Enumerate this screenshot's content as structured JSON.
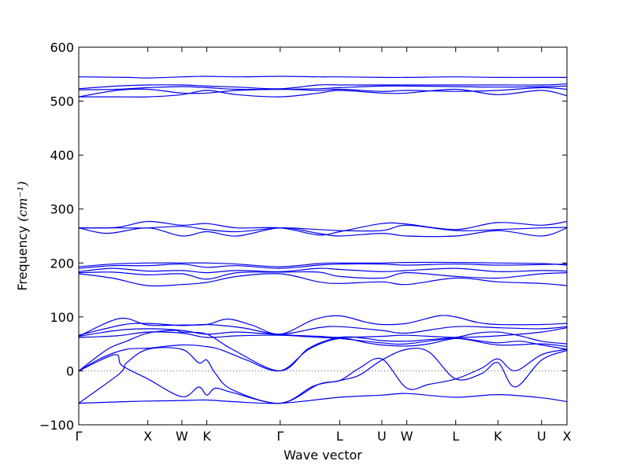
{
  "chart_data": {
    "type": "line",
    "title": "",
    "xlabel": "Wave vector",
    "ylabel": "Frequency ",
    "ylabel_unit": "(cm⁻¹)",
    "ylim": [
      -100,
      600
    ],
    "yticks": [
      -100,
      0,
      100,
      200,
      300,
      400,
      500,
      600
    ],
    "xlim": [
      0,
      10.18
    ],
    "xticks": [
      {
        "label": "Γ",
        "x": 0.0
      },
      {
        "label": "X",
        "x": 1.44
      },
      {
        "label": "W",
        "x": 2.15
      },
      {
        "label": "K",
        "x": 2.67
      },
      {
        "label": "Γ",
        "x": 4.2
      },
      {
        "label": "L",
        "x": 5.44
      },
      {
        "label": "U",
        "x": 6.32
      },
      {
        "label": "W",
        "x": 6.84
      },
      {
        "label": "L",
        "x": 7.86
      },
      {
        "label": "K",
        "x": 8.74
      },
      {
        "label": "U",
        "x": 9.65
      },
      {
        "label": "X",
        "x": 10.18
      }
    ],
    "reference_line": {
      "y": 0,
      "style": "dotted"
    },
    "band_color": "#0000ee",
    "grid": false,
    "legend": "none",
    "series": [
      {
        "x": [
          0,
          1.0,
          1.44,
          2.15,
          2.67,
          3.2,
          4.2,
          5.44,
          6.32,
          6.84,
          7.86,
          8.74,
          9.65,
          10.18
        ],
        "values": [
          -60,
          -57,
          -56,
          -55,
          -54,
          -57,
          -60,
          -49,
          -45,
          -42,
          -49,
          -44,
          -50,
          -57
        ]
      },
      {
        "x": [
          0,
          0.85,
          1.0,
          1.44,
          2.15,
          2.5,
          2.67,
          2.85,
          3.2,
          4.2,
          5.0,
          5.44,
          5.85,
          6.32,
          6.84,
          7.3,
          7.86,
          8.4,
          8.74,
          9.1,
          9.65,
          10.18
        ],
        "values": [
          -60,
          -5,
          15,
          40,
          40,
          15,
          20,
          -5,
          -35,
          -60,
          -25,
          -18,
          5,
          22,
          -32,
          -25,
          -15,
          5,
          22,
          0,
          30,
          40
        ]
      },
      {
        "x": [
          0,
          0.75,
          0.9,
          1.44,
          2.15,
          2.5,
          2.67,
          2.85,
          3.2,
          4.2,
          4.9,
          5.44,
          5.85,
          6.32,
          6.84,
          7.3,
          7.86,
          8.4,
          8.74,
          9.1,
          9.65,
          10.18
        ],
        "values": [
          0,
          30,
          10,
          -15,
          -48,
          -30,
          -45,
          -32,
          -40,
          -60,
          -28,
          -18,
          -8,
          20,
          40,
          35,
          -15,
          -5,
          15,
          -30,
          20,
          38
        ]
      },
      {
        "x": [
          0,
          0.5,
          1.0,
          1.44,
          2.15,
          2.67,
          3.0,
          3.5,
          4.2,
          4.8,
          5.44,
          6.0,
          6.32,
          6.84,
          7.3,
          7.86,
          8.4,
          8.74,
          9.2,
          9.65,
          10.18
        ],
        "values": [
          0,
          25,
          40,
          42,
          48,
          45,
          38,
          20,
          0,
          40,
          60,
          52,
          48,
          46,
          50,
          60,
          55,
          52,
          55,
          48,
          40
        ]
      },
      {
        "x": [
          0,
          0.6,
          1.0,
          1.44,
          2.0,
          2.15,
          2.67,
          3.2,
          4.2,
          4.8,
          5.44,
          6.0,
          6.32,
          6.84,
          7.3,
          7.86,
          8.3,
          8.74,
          9.2,
          9.65,
          10.18
        ],
        "values": [
          0,
          40,
          55,
          70,
          75,
          72,
          68,
          40,
          0,
          42,
          62,
          60,
          56,
          55,
          58,
          62,
          70,
          72,
          65,
          55,
          50
        ]
      },
      {
        "x": [
          0,
          0.8,
          1.44,
          2.15,
          2.67,
          3.3,
          4.2,
          5.0,
          5.44,
          6.32,
          6.84,
          7.86,
          8.74,
          9.65,
          10.18
        ],
        "values": [
          62,
          65,
          72,
          70,
          62,
          65,
          66,
          62,
          60,
          52,
          50,
          60,
          48,
          50,
          45
        ]
      },
      {
        "x": [
          0,
          0.8,
          1.44,
          2.15,
          2.67,
          3.3,
          4.2,
          5.0,
          5.44,
          6.32,
          6.84,
          7.86,
          8.74,
          9.65,
          10.18
        ],
        "values": [
          64,
          75,
          78,
          75,
          68,
          72,
          67,
          64,
          62,
          64,
          66,
          62,
          65,
          72,
          80
        ]
      },
      {
        "x": [
          0,
          0.9,
          1.44,
          2.15,
          2.67,
          3.4,
          4.2,
          5.0,
          5.44,
          6.32,
          6.84,
          7.86,
          8.74,
          9.65,
          10.18
        ],
        "values": [
          66,
          85,
          88,
          84,
          86,
          80,
          68,
          80,
          82,
          75,
          70,
          82,
          80,
          78,
          82
        ]
      },
      {
        "x": [
          0,
          0.85,
          1.44,
          2.15,
          2.67,
          3.1,
          3.6,
          4.2,
          4.9,
          5.44,
          6.0,
          6.32,
          6.84,
          7.5,
          7.86,
          8.3,
          8.74,
          9.65,
          10.18
        ],
        "values": [
          64,
          97,
          85,
          85,
          86,
          96,
          85,
          68,
          95,
          102,
          90,
          86,
          88,
          102,
          100,
          90,
          86,
          86,
          88
        ]
      },
      {
        "x": [
          0,
          0.7,
          1.44,
          2.15,
          2.67,
          3.3,
          4.2,
          5.0,
          5.44,
          6.32,
          6.84,
          7.86,
          8.74,
          9.65,
          10.18
        ],
        "values": [
          180,
          172,
          158,
          160,
          164,
          175,
          180,
          165,
          162,
          165,
          160,
          172,
          165,
          162,
          158
        ]
      },
      {
        "x": [
          0,
          0.7,
          1.44,
          2.15,
          2.67,
          3.3,
          4.2,
          5.0,
          5.44,
          6.32,
          6.84,
          7.86,
          8.74,
          9.65,
          10.18
        ],
        "values": [
          182,
          183,
          178,
          180,
          170,
          182,
          183,
          183,
          175,
          172,
          182,
          175,
          172,
          180,
          182
        ]
      },
      {
        "x": [
          0,
          0.7,
          1.44,
          2.15,
          2.67,
          3.3,
          4.2,
          5.0,
          5.44,
          6.32,
          6.84,
          7.86,
          8.74,
          9.65,
          10.18
        ],
        "values": [
          184,
          190,
          185,
          186,
          182,
          186,
          184,
          190,
          188,
          184,
          186,
          190,
          184,
          186,
          185
        ]
      },
      {
        "x": [
          0,
          0.7,
          1.44,
          2.15,
          2.67,
          3.3,
          4.2,
          5.0,
          5.44,
          6.32,
          6.84,
          7.86,
          8.74,
          9.65,
          10.18
        ],
        "values": [
          190,
          195,
          195,
          198,
          192,
          195,
          190,
          196,
          198,
          198,
          196,
          198,
          196,
          197,
          198
        ]
      },
      {
        "x": [
          0,
          0.7,
          1.44,
          2.15,
          2.67,
          3.3,
          4.2,
          5.0,
          5.44,
          6.32,
          6.84,
          7.86,
          8.74,
          9.65,
          10.18
        ],
        "values": [
          193,
          198,
          200,
          200,
          200,
          198,
          193,
          199,
          200,
          200,
          201,
          201,
          200,
          199,
          196
        ]
      },
      {
        "x": [
          0,
          0.6,
          1.44,
          2.15,
          2.67,
          3.3,
          4.2,
          5.0,
          5.44,
          6.32,
          6.84,
          7.86,
          8.74,
          9.65,
          10.18
        ],
        "values": [
          265,
          255,
          265,
          250,
          258,
          250,
          265,
          255,
          250,
          255,
          250,
          250,
          260,
          250,
          265
        ]
      },
      {
        "x": [
          0,
          0.8,
          1.44,
          2.15,
          2.67,
          3.3,
          4.2,
          5.0,
          5.44,
          6.32,
          6.84,
          7.86,
          8.74,
          9.65,
          10.18
        ],
        "values": [
          265,
          265,
          265,
          268,
          262,
          258,
          265,
          262,
          260,
          260,
          270,
          260,
          262,
          265,
          266
        ]
      },
      {
        "x": [
          0,
          0.8,
          1.44,
          2.15,
          2.67,
          3.3,
          4.2,
          5.0,
          5.44,
          6.32,
          6.84,
          7.86,
          8.74,
          9.65,
          10.18
        ],
        "values": [
          265,
          266,
          277,
          270,
          273,
          265,
          265,
          252,
          258,
          273,
          272,
          262,
          275,
          270,
          277
        ]
      },
      {
        "x": [
          0,
          0.8,
          1.44,
          2.15,
          2.67,
          3.3,
          4.2,
          5.0,
          5.44,
          6.32,
          6.84,
          7.86,
          8.74,
          9.65,
          10.18
        ],
        "values": [
          508,
          508,
          508,
          512,
          520,
          512,
          508,
          515,
          520,
          515,
          515,
          522,
          512,
          520,
          510
        ]
      },
      {
        "x": [
          0,
          0.8,
          1.44,
          2.15,
          2.67,
          3.3,
          4.2,
          5.0,
          5.44,
          6.32,
          6.84,
          7.86,
          8.74,
          9.65,
          10.18
        ],
        "values": [
          508,
          520,
          522,
          515,
          515,
          520,
          522,
          520,
          522,
          518,
          520,
          518,
          520,
          525,
          522
        ]
      },
      {
        "x": [
          0,
          0.8,
          1.44,
          2.15,
          2.67,
          3.3,
          4.2,
          5.0,
          5.44,
          6.32,
          6.84,
          7.86,
          8.74,
          9.65,
          10.18
        ],
        "values": [
          521,
          522,
          525,
          527,
          525,
          522,
          522,
          523,
          525,
          528,
          528,
          527,
          526,
          527,
          528
        ]
      },
      {
        "x": [
          0,
          0.8,
          1.44,
          2.15,
          2.67,
          3.3,
          4.2,
          5.0,
          5.44,
          6.32,
          6.84,
          7.86,
          8.74,
          9.65,
          10.18
        ],
        "values": [
          523,
          528,
          530,
          530,
          528,
          526,
          523,
          530,
          530,
          530,
          530,
          530,
          530,
          530,
          532
        ]
      },
      {
        "x": [
          0,
          1.0,
          1.44,
          2.15,
          2.67,
          3.3,
          4.2,
          5.0,
          5.44,
          6.32,
          6.84,
          7.86,
          8.74,
          9.65,
          10.18
        ],
        "values": [
          545,
          544,
          543,
          545,
          546,
          545,
          546,
          545,
          545,
          544,
          544,
          545,
          544,
          544,
          544
        ]
      }
    ]
  }
}
